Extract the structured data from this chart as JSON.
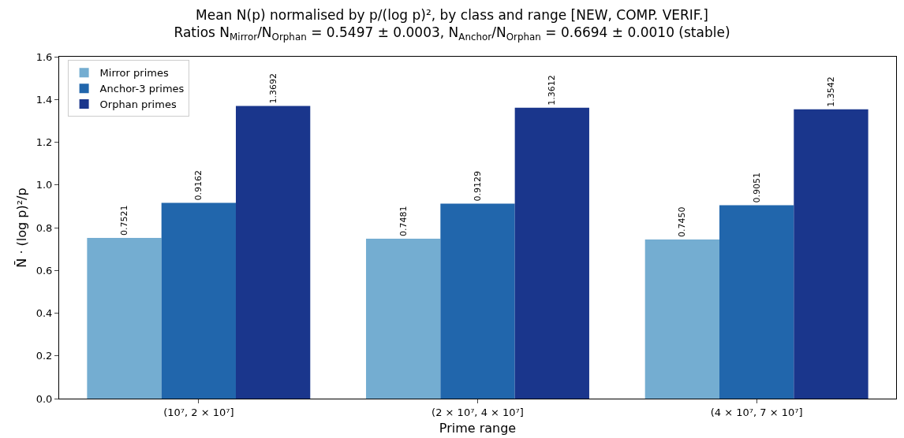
{
  "chart_data": {
    "type": "bar",
    "title": "Mean N(p) normalised by p/(log p)², by class and range [NEW, COMP. VERIF.]",
    "subtitle": "Ratios N$_{Mirror}$/N$_{Orphan}$ = 0.5497 ± 0.0003, N$_{Anchor}$/N$_{Orphan}$ = 0.6694 ± 0.0010 (stable)",
    "xlabel": "Prime range",
    "ylabel": "N̄ · (log p)²/p",
    "categories": [
      "(10⁷, 2 × 10⁷]",
      "(2 × 10⁷, 4 × 10⁷]",
      "(4 × 10⁷, 7 × 10⁷]"
    ],
    "series": [
      {
        "name": "Mirror primes",
        "color": "#74add1",
        "values": [
          0.7521,
          0.7481,
          0.745
        ],
        "value_labels": [
          "0.7521",
          "0.7481",
          "0.7450"
        ]
      },
      {
        "name": "Anchor-3 primes",
        "color": "#2166ac",
        "values": [
          0.9162,
          0.9129,
          0.9051
        ],
        "value_labels": [
          "0.9162",
          "0.9129",
          "0.9051"
        ]
      },
      {
        "name": "Orphan primes",
        "color": "#1a368c",
        "values": [
          1.3692,
          1.3612,
          1.3542
        ],
        "value_labels": [
          "1.3692",
          "1.3612",
          "1.3542"
        ]
      }
    ],
    "ylim": [
      0,
      1.6
    ],
    "yticks": [
      {
        "value": 0,
        "label": "0.0"
      },
      0.2,
      0.4,
      0.6,
      0.8,
      {
        "value": 1,
        "label": "1.0"
      },
      1.2,
      1.4,
      1.6
    ],
    "grid": false,
    "legend": "top left"
  }
}
